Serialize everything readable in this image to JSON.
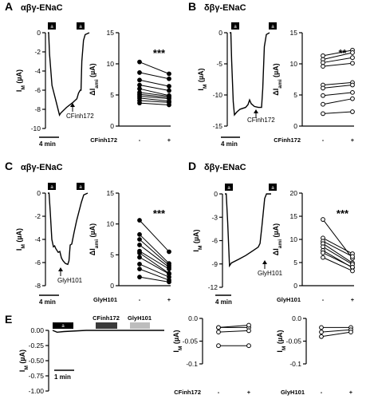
{
  "panels": [
    {
      "letter": "A",
      "title": "αβγ-ENaC"
    },
    {
      "letter": "B",
      "title": "δβγ-ENaC"
    },
    {
      "letter": "C",
      "title": "αβγ-ENaC"
    },
    {
      "letter": "D",
      "title": "δβγ-ENaC"
    },
    {
      "letter": "E",
      "title": ""
    }
  ],
  "traces": [
    {
      "panel": "A",
      "type": "line",
      "xlabel": "",
      "ylabel": "I_M (µA)",
      "ylim": [
        -10,
        0
      ],
      "yticks": [
        "0",
        "-2",
        "-4",
        "-6",
        "-8",
        "-10"
      ],
      "amiloride_label": "a",
      "annotation": "CFinh172",
      "scalebar": "4 min"
    },
    {
      "panel": "B",
      "type": "line",
      "xlabel": "",
      "ylabel": "I_M (µA)",
      "ylim": [
        -15,
        0
      ],
      "yticks": [
        "0",
        "-5",
        "-10",
        "-15"
      ],
      "amiloride_label": "a",
      "annotation": "CFinh172",
      "scalebar": "4 min"
    },
    {
      "panel": "C",
      "type": "line",
      "xlabel": "",
      "ylabel": "I_M (µA)",
      "ylim": [
        -8,
        0
      ],
      "yticks": [
        "0",
        "-2",
        "-4",
        "-6",
        "-8"
      ],
      "amiloride_label": "a",
      "annotation": "GlyH101",
      "scalebar": "4 min"
    },
    {
      "panel": "D",
      "type": "line",
      "xlabel": "",
      "ylabel": "I_M (µA)",
      "ylim": [
        -12,
        0
      ],
      "yticks": [
        "0",
        "-3",
        "-6",
        "-9",
        "-12"
      ],
      "amiloride_label": "a",
      "annotation": "GlyH101",
      "scalebar": "4 min"
    },
    {
      "panel": "E",
      "type": "line",
      "xlabel": "",
      "ylabel": "I_M (µA)",
      "ylim": [
        -1,
        0
      ],
      "yticks": [
        "0.00",
        "-0.25",
        "-0.50",
        "-0.75",
        "-1.00"
      ],
      "amiloride_label": "a",
      "bar_labels": [
        "CFinh172",
        "GlyH101"
      ],
      "scalebar": "1 min"
    }
  ],
  "chart_data": [
    {
      "panel": "A",
      "type": "scatter",
      "xlabel": "CFinh172",
      "ylabel": "ΔI_ami (µA)",
      "categories": [
        "-",
        "+"
      ],
      "ylim": [
        0,
        15
      ],
      "yticks": [
        "0",
        "5",
        "10",
        "15"
      ],
      "significance": "***",
      "pairs": [
        [
          10.3,
          8.4
        ],
        [
          8.6,
          7.6
        ],
        [
          7.4,
          6.4
        ],
        [
          6.6,
          5.7
        ],
        [
          6.0,
          4.9
        ],
        [
          5.4,
          4.8
        ],
        [
          5.1,
          4.6
        ],
        [
          4.8,
          4.4
        ],
        [
          4.5,
          4.0
        ],
        [
          4.1,
          3.8
        ],
        [
          3.7,
          3.4
        ]
      ]
    },
    {
      "panel": "B",
      "type": "scatter",
      "xlabel": "CFinh172",
      "ylabel": "ΔI_ami (µA)",
      "categories": [
        "-",
        "+"
      ],
      "ylim": [
        0,
        15
      ],
      "yticks": [
        "0",
        "5",
        "10",
        "15"
      ],
      "significance": "**",
      "pairs": [
        [
          11.3,
          12.2
        ],
        [
          10.7,
          11.8
        ],
        [
          10.2,
          11.0
        ],
        [
          9.6,
          10.1
        ],
        [
          6.6,
          7.0
        ],
        [
          6.1,
          6.6
        ],
        [
          4.9,
          5.4
        ],
        [
          3.5,
          4.4
        ],
        [
          2.0,
          2.3
        ]
      ]
    },
    {
      "panel": "C",
      "type": "scatter",
      "xlabel": "GlyH101",
      "ylabel": "ΔI_ami (µA)",
      "categories": [
        "-",
        "+"
      ],
      "ylim": [
        0,
        15
      ],
      "yticks": [
        "0",
        "5",
        "10",
        "15"
      ],
      "significance": "***",
      "pairs": [
        [
          10.6,
          5.5
        ],
        [
          8.3,
          3.6
        ],
        [
          7.5,
          3.3
        ],
        [
          6.6,
          3.0
        ],
        [
          5.6,
          2.7
        ],
        [
          5.3,
          2.0
        ],
        [
          4.6,
          1.9
        ],
        [
          3.5,
          1.4
        ],
        [
          2.7,
          0.9
        ],
        [
          1.4,
          0.6
        ]
      ]
    },
    {
      "panel": "D",
      "type": "scatter",
      "xlabel": "GlyH101",
      "ylabel": "ΔI_ami (µA)",
      "categories": [
        "-",
        "+"
      ],
      "ylim": [
        0,
        20
      ],
      "yticks": [
        "0",
        "5",
        "10",
        "15",
        "20"
      ],
      "significance": "***",
      "pairs": [
        [
          14.3,
          5.9
        ],
        [
          10.3,
          6.9
        ],
        [
          9.6,
          6.3
        ],
        [
          9.1,
          4.9
        ],
        [
          8.4,
          4.6
        ],
        [
          7.6,
          3.9
        ],
        [
          7.1,
          4.0
        ],
        [
          6.1,
          3.2
        ]
      ]
    },
    {
      "panel": "E1",
      "type": "scatter",
      "xlabel": "CFinh172",
      "ylabel": "I_M (µA)",
      "categories": [
        "-",
        "+"
      ],
      "ylim": [
        -0.1,
        0
      ],
      "yticks": [
        "0.0",
        "-0.05",
        "-0.1"
      ],
      "significance": "",
      "pairs": [
        [
          -0.02,
          -0.02
        ],
        [
          -0.02,
          -0.015
        ],
        [
          -0.03,
          -0.027
        ],
        [
          -0.06,
          -0.06
        ]
      ]
    },
    {
      "panel": "E2",
      "type": "scatter",
      "xlabel": "GlyH101",
      "ylabel": "I_M (µA)",
      "categories": [
        "-",
        "+"
      ],
      "ylim": [
        -0.1,
        0
      ],
      "yticks": [
        "0.0",
        "-0.05",
        "-0.1"
      ],
      "significance": "",
      "pairs": [
        [
          -0.02,
          -0.02
        ],
        [
          -0.03,
          -0.025
        ],
        [
          -0.04,
          -0.03
        ]
      ]
    }
  ]
}
